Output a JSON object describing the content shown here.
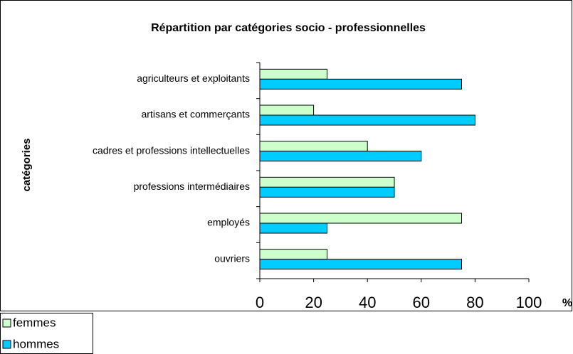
{
  "chart_data": {
    "type": "bar",
    "orientation": "horizontal",
    "title": "Répartition par catégories socio - professionnelles",
    "y_label": "catégories",
    "x_label": "%",
    "categories": [
      "agriculteurs et exploitants",
      "artisans et commerçants",
      "cadres et professions intellectuelles",
      "professions intermédiaires",
      "employés",
      "ouvriers"
    ],
    "series": [
      {
        "name": "femmes",
        "color": "#ccffcc",
        "values": [
          25,
          20,
          40,
          50,
          75,
          25
        ]
      },
      {
        "name": "hommes",
        "color": "#00ccff",
        "values": [
          75,
          80,
          60,
          50,
          25,
          75
        ]
      }
    ],
    "xlim": [
      0,
      100
    ],
    "xticks": [
      0,
      20,
      40,
      60,
      80,
      100
    ],
    "grid": false,
    "legend": "bottom-left"
  }
}
